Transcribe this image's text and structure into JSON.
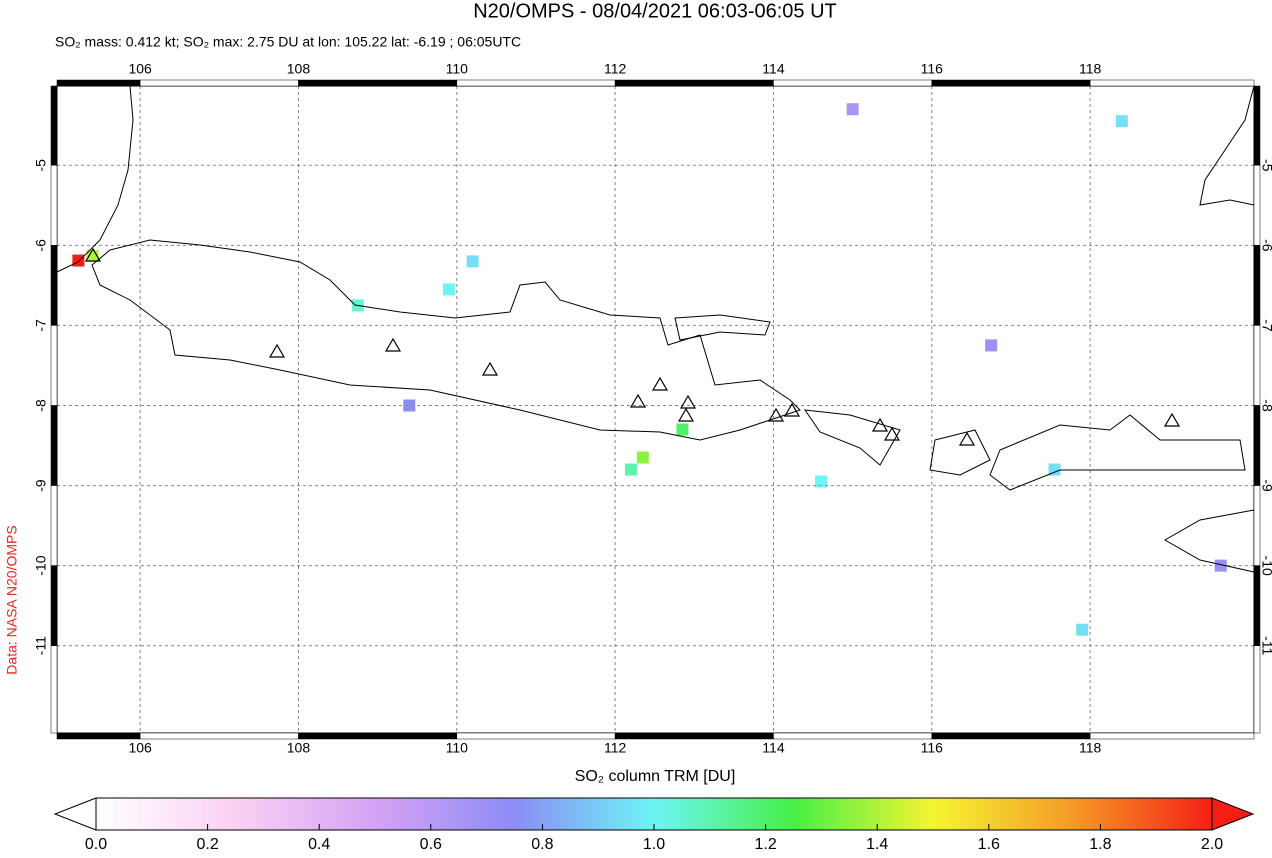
{
  "chart_data": {
    "type": "map",
    "title": "N20/OMPS - 08/04/2021 06:03-06:05 UT",
    "subtitle": "SO₂ mass: 0.412 kt; SO₂ max: 2.75 DU at lon: 105.22 lat: -6.19 ; 06:05UTC",
    "credit": "Data: NASA N20/OMPS",
    "colorbar_label": "SO₂ column TRM [DU]",
    "xlim": [
      104.95,
      120.07
    ],
    "ylim": [
      -12.09,
      -4.01
    ],
    "xticks": [
      106,
      108,
      110,
      112,
      114,
      116,
      118
    ],
    "yticks": [
      -5,
      -6,
      -7,
      -8,
      -9,
      -10,
      -11
    ],
    "grid": true,
    "clim": [
      0,
      2
    ],
    "cticks": [
      {
        "value": 0,
        "label": "0.0"
      },
      0.2,
      0.4,
      0.6,
      0.8,
      {
        "value": 1,
        "label": "1.0"
      },
      1.2,
      1.4,
      1.6,
      1.8,
      {
        "value": 2,
        "label": "2.0"
      }
    ],
    "colormap": [
      "#ffffff",
      "#fbd0f3",
      "#d6a2f5",
      "#8c8cf5",
      "#6df5f5",
      "#46f046",
      "#f5f532",
      "#f59a28",
      "#f51e14"
    ],
    "pixels": [
      {
        "lon": 105.22,
        "lat": -6.19,
        "value": 2.75
      },
      {
        "lon": 105.4,
        "lat": -6.13,
        "value": 1.4
      },
      {
        "lon": 109.9,
        "lat": -6.55,
        "value": 1.0
      },
      {
        "lon": 110.2,
        "lat": -6.2,
        "value": 0.95
      },
      {
        "lon": 108.75,
        "lat": -6.75,
        "value": 1.05
      },
      {
        "lon": 112.35,
        "lat": -8.65,
        "value": 1.35
      },
      {
        "lon": 112.2,
        "lat": -8.8,
        "value": 1.1
      },
      {
        "lon": 112.85,
        "lat": -8.3,
        "value": 1.2
      },
      {
        "lon": 114.6,
        "lat": -8.95,
        "value": 1.0
      },
      {
        "lon": 117.55,
        "lat": -8.8,
        "value": 0.95
      },
      {
        "lon": 117.9,
        "lat": -10.8,
        "value": 0.95
      },
      {
        "lon": 118.4,
        "lat": -4.45,
        "value": 0.95
      },
      {
        "lon": 109.4,
        "lat": -8.0,
        "value": 0.75
      },
      {
        "lon": 116.75,
        "lat": -7.25,
        "value": 0.7
      },
      {
        "lon": 119.65,
        "lat": -10.0,
        "value": 0.7
      },
      {
        "lon": 115.0,
        "lat": -4.3,
        "value": 0.65
      }
    ]
  }
}
